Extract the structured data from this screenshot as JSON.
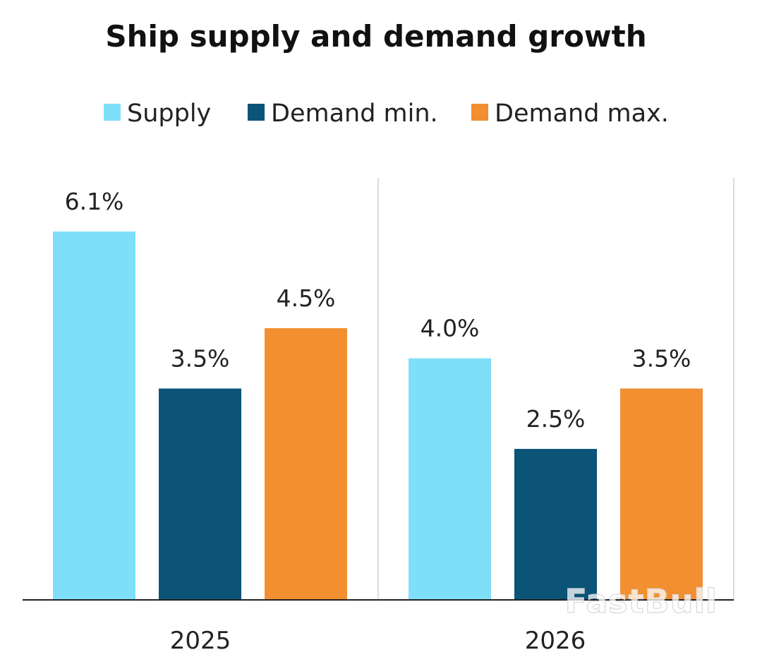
{
  "chart_data": {
    "type": "bar",
    "title": "Ship supply and demand growth",
    "categories": [
      "2025",
      "2026"
    ],
    "series": [
      {
        "name": "Supply",
        "color": "#7fdff9",
        "values": [
          6.1,
          4.0
        ],
        "labels": [
          "6.1%",
          "4.0%"
        ]
      },
      {
        "name": "Demand min.",
        "color": "#0b5478",
        "values": [
          3.5,
          2.5
        ],
        "labels": [
          "3.5%",
          "2.5%"
        ]
      },
      {
        "name": "Demand max.",
        "color": "#f28f31",
        "values": [
          4.5,
          3.5
        ],
        "labels": [
          "4.5%",
          "3.5%"
        ]
      }
    ],
    "ylim": [
      0,
      7
    ],
    "unit": "%",
    "grid": false,
    "legend_position": "top-center",
    "category_separator": true
  },
  "watermark": "FastBull"
}
